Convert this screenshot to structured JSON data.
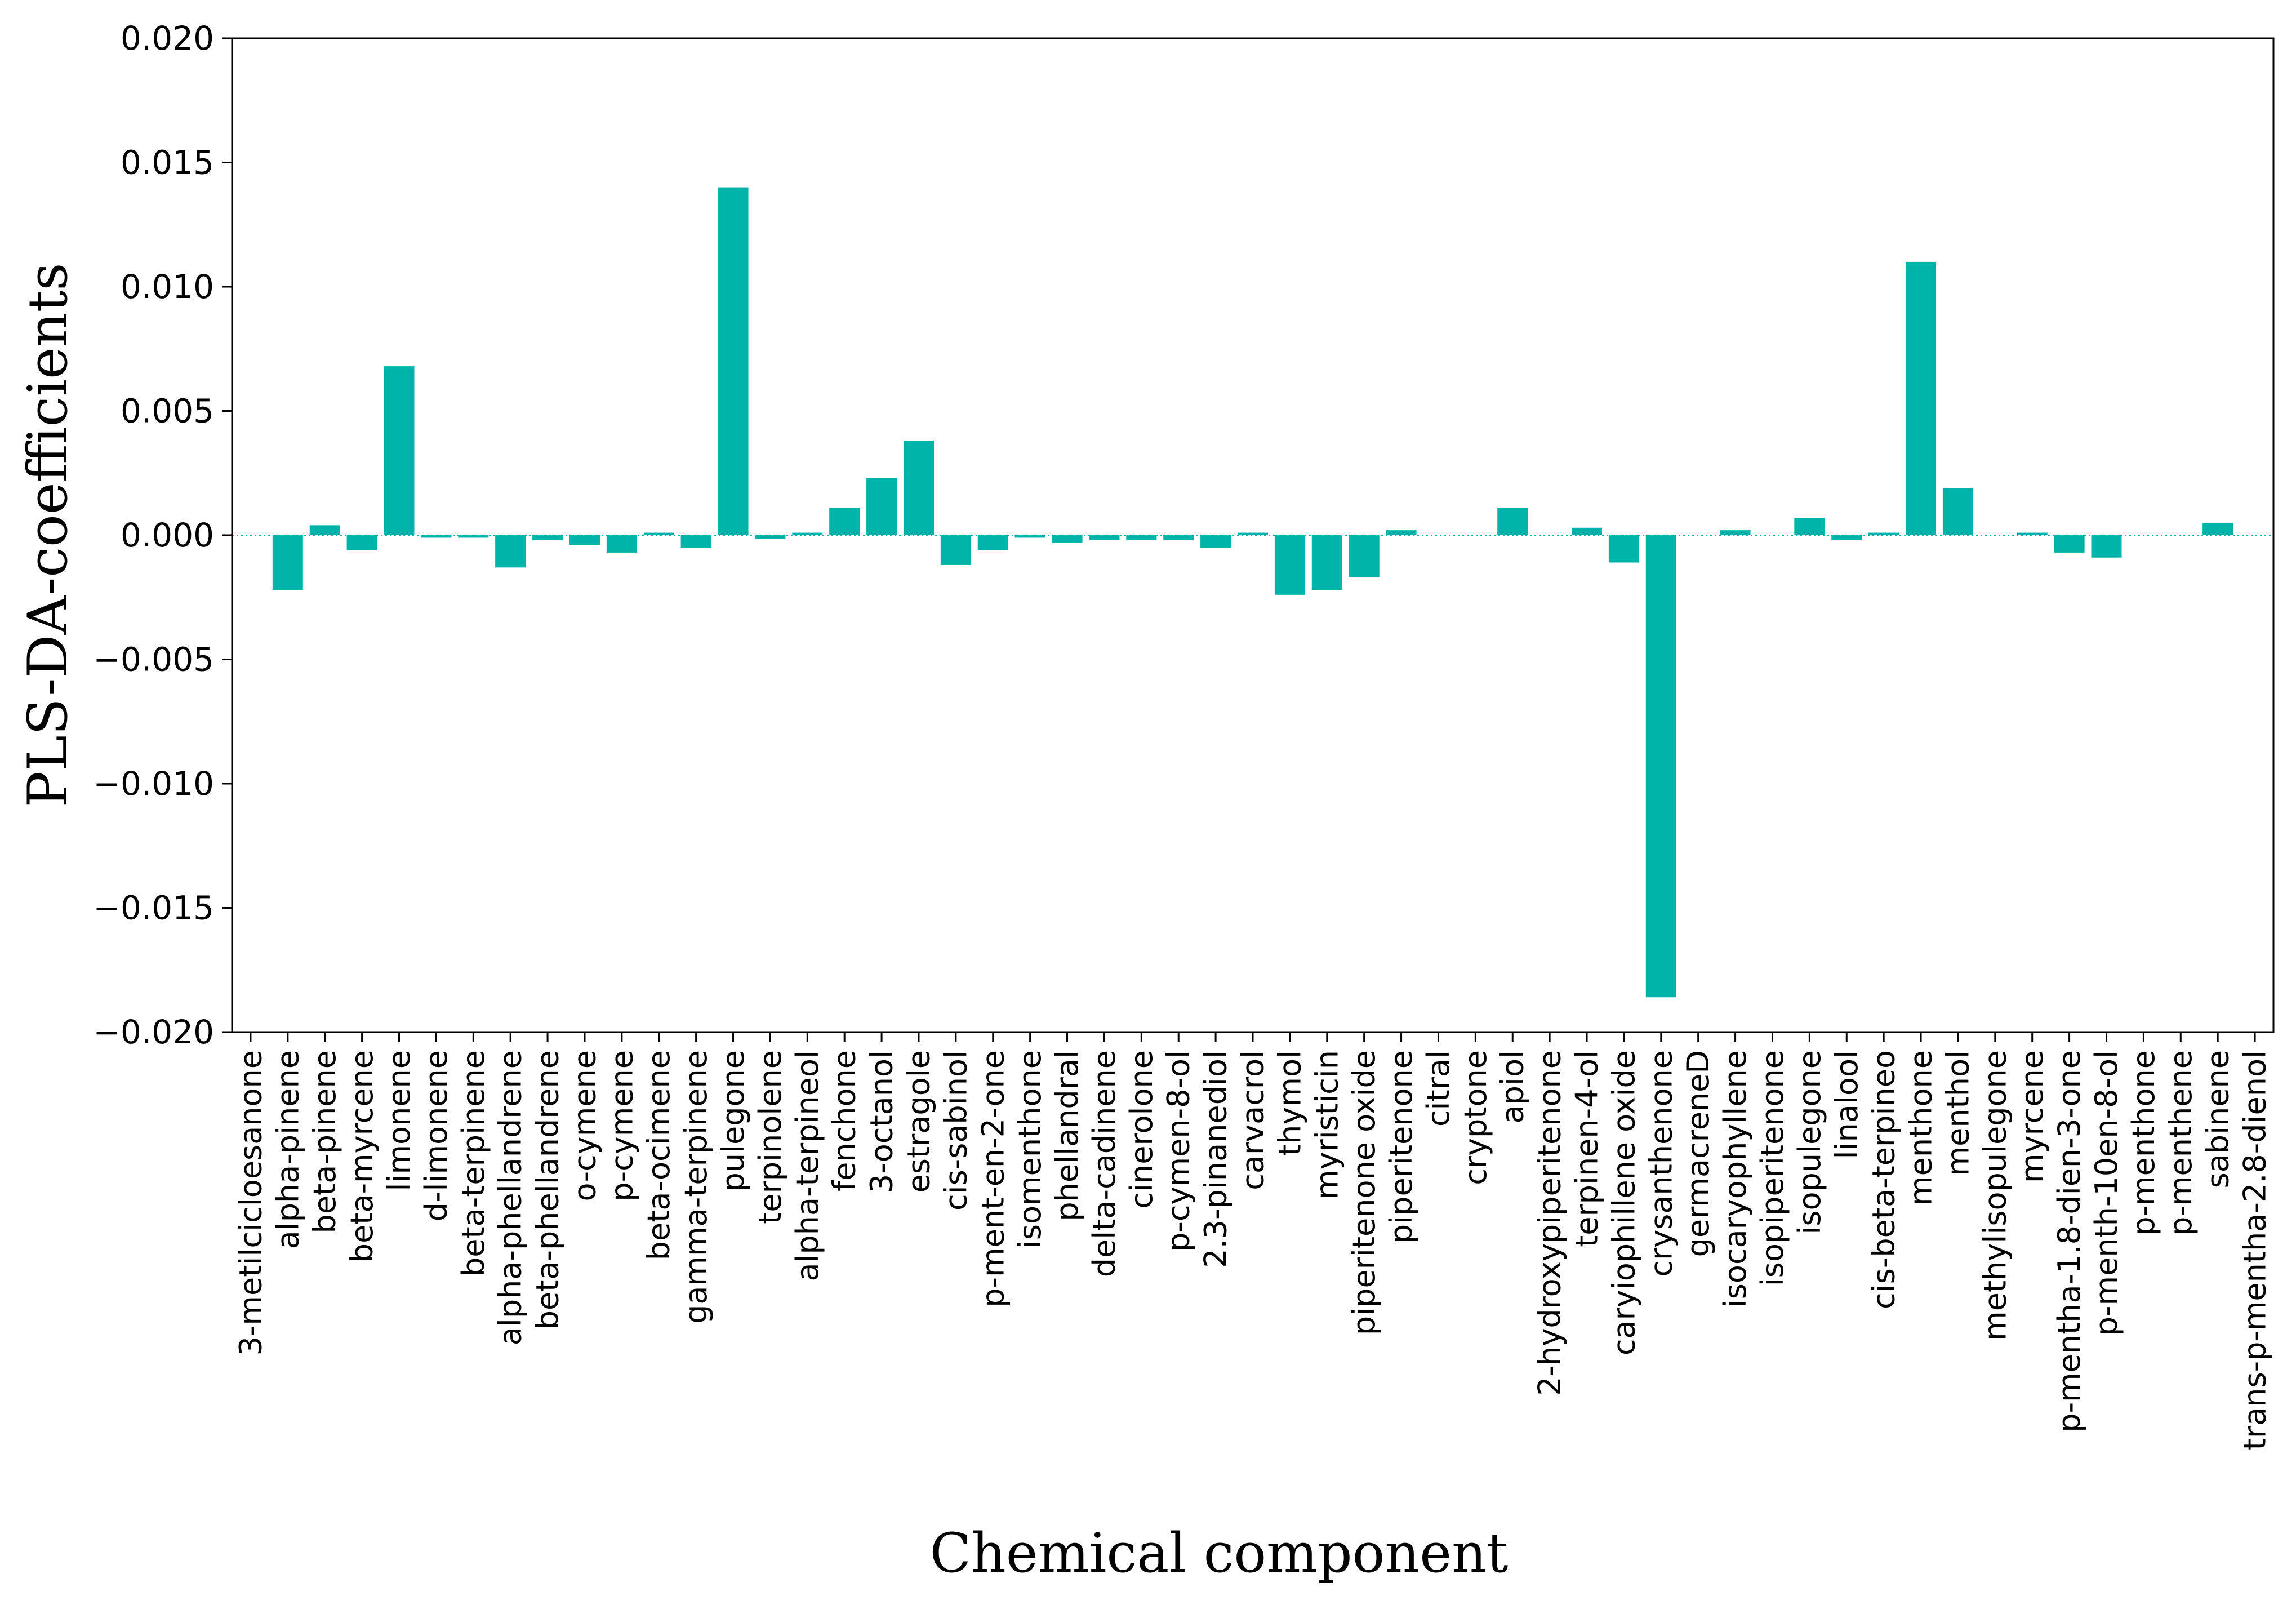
{
  "chart_data": {
    "type": "bar",
    "xlabel": "Chemical component",
    "ylabel": "PLS-DA-coefficients",
    "ylim": [
      -0.02,
      0.02
    ],
    "yticks": [
      0.02,
      0.015,
      0.01,
      0.005,
      0.0,
      -0.005,
      -0.01,
      -0.015,
      -0.02
    ],
    "ytick_labels": [
      "0.020",
      "0.015",
      "0.010",
      "0.005",
      "0.000",
      "−0.005",
      "−0.010",
      "−0.015",
      "−0.020"
    ],
    "bar_color": "#00b4aa",
    "categories": [
      "3-metilcicloesanone",
      "alpha-pinene",
      "beta-pinene",
      "beta-myrcene",
      "limonene",
      "d-limonene",
      "beta-terpinene",
      "alpha-phellandrene",
      "beta-phellandrene",
      "o-cymene",
      "p-cymene",
      "beta-ocimene",
      "gamma-terpinene",
      "pulegone",
      "terpinolene",
      "alpha-terpineol",
      "fenchone",
      "3-octanol",
      "estragole",
      "cis-sabinol",
      "p-ment-en-2-one",
      "isomenthone",
      "phellandral",
      "delta-cadinene",
      "cinerolone",
      "p-cymen-8-ol",
      "2.3-pinanediol",
      "carvacrol",
      "thymol",
      "myristicin",
      "piperitenone oxide",
      "piperitenone",
      "citral",
      "cryptone",
      "apiol",
      "2-hydroxypiperitenone",
      "terpinen-4-ol",
      "caryiophillene oxide",
      "crysanthenone",
      "germacreneD",
      "isocaryophyllene",
      "isopiperitenone",
      "isopulegone",
      "linalool",
      "cis-beta-terpineo",
      "menthone",
      "menthol",
      "methylisopulegone",
      "myrcene",
      "p-mentha-1.8-dien-3-one",
      "p-menth-10en-8-ol",
      "p-menthone",
      "p-menthene",
      "sabinene",
      "trans-p-mentha-2.8-dienol"
    ],
    "values": [
      0.0,
      -0.0022,
      0.0004,
      -0.0006,
      0.0068,
      -0.0001,
      -0.0001,
      -0.0013,
      -0.0002,
      -0.0004,
      -0.0007,
      0.0001,
      -0.0005,
      0.014,
      -0.00015,
      0.0001,
      0.0011,
      0.0023,
      0.0038,
      -0.0012,
      -0.0006,
      -0.0001,
      -0.0003,
      -0.0002,
      -0.0002,
      -0.0002,
      -0.0005,
      0.0001,
      -0.0024,
      -0.0022,
      -0.0017,
      0.0002,
      0.0,
      0.0,
      0.0011,
      0.0,
      0.0003,
      -0.0011,
      -0.0186,
      0.0,
      0.0002,
      0.0,
      0.0007,
      -0.0002,
      0.0001,
      0.011,
      0.0019,
      0.0,
      0.0001,
      -0.0007,
      -0.0009,
      0.0,
      0.0,
      0.0005,
      0.0
    ]
  }
}
